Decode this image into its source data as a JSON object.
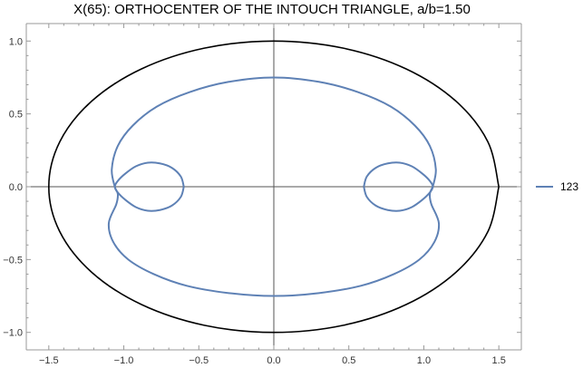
{
  "chart_data": {
    "type": "line",
    "title": "X(65): ORTHOCENTER OF THE INTOUCH TRIANGLE, a/b=1.50",
    "xlabel": "",
    "ylabel": "",
    "xlim": [
      -1.65,
      1.65
    ],
    "ylim": [
      -1.12,
      1.12
    ],
    "x_ticks": [
      -1.5,
      -1.0,
      -0.5,
      0.0,
      0.5,
      1.0,
      1.5
    ],
    "y_ticks": [
      -1.0,
      -0.5,
      0.0,
      0.5,
      1.0
    ],
    "x_tick_labels": [
      "−1.5",
      "−1.0",
      "−0.5",
      "0.0",
      "0.5",
      "1.0",
      "1.5"
    ],
    "y_tick_labels": [
      "−1.0",
      "−0.5",
      "0.0",
      "0.5",
      "1.0"
    ],
    "grid": false,
    "legend_position": "right",
    "colors": {
      "ellipse": "#000000",
      "series": "#5e81b5"
    },
    "series": [
      {
        "name": "",
        "kind": "reference-ellipse",
        "color": "#000000",
        "x": [
          1.5,
          1.4266,
          1.2135,
          0.8817,
          0.4635,
          0.0,
          -0.4635,
          -0.8817,
          -1.2135,
          -1.4266,
          -1.5,
          -1.4266,
          -1.2135,
          -0.8817,
          -0.4635,
          0.0,
          0.4635,
          0.8817,
          1.2135,
          1.4266,
          1.5
        ],
        "y": [
          0.0,
          0.309,
          0.5878,
          0.809,
          0.9511,
          1.0,
          0.9511,
          0.809,
          0.5878,
          0.309,
          0.0,
          -0.309,
          -0.5878,
          -0.809,
          -0.9511,
          -1.0,
          -0.9511,
          -0.809,
          -0.5878,
          -0.309,
          0.0
        ]
      },
      {
        "name": "123",
        "kind": "locus-outer",
        "color": "#5e81b5",
        "x": [
          1.06,
          1.08,
          1.04,
          0.94,
          0.78,
          0.56,
          0.3,
          0.0,
          -0.3,
          -0.56,
          -0.78,
          -0.94,
          -1.04,
          -1.08,
          -1.06,
          -1.04,
          -1.05,
          -1.1,
          -1.07,
          -0.97,
          -0.8,
          -0.58,
          -0.3,
          0.0,
          0.3,
          0.58,
          0.8,
          0.97,
          1.07,
          1.1,
          1.05,
          1.04,
          1.06
        ],
        "y": [
          0.0,
          0.12,
          0.28,
          0.42,
          0.55,
          0.65,
          0.72,
          0.75,
          0.72,
          0.65,
          0.55,
          0.42,
          0.28,
          0.12,
          0.0,
          -0.05,
          -0.12,
          -0.25,
          -0.38,
          -0.5,
          -0.6,
          -0.68,
          -0.73,
          -0.75,
          -0.73,
          -0.68,
          -0.6,
          -0.5,
          -0.38,
          -0.25,
          -0.12,
          -0.05,
          0.0
        ]
      },
      {
        "name": "123",
        "kind": "locus-right-loop",
        "color": "#5e81b5",
        "x": [
          0.6,
          0.62,
          0.68,
          0.76,
          0.84,
          0.92,
          0.99,
          1.04,
          1.06,
          1.04,
          0.99,
          0.92,
          0.84,
          0.76,
          0.68,
          0.62,
          0.6
        ],
        "y": [
          0.0,
          0.07,
          0.13,
          0.16,
          0.165,
          0.14,
          0.09,
          0.04,
          0.0,
          -0.04,
          -0.09,
          -0.14,
          -0.165,
          -0.16,
          -0.13,
          -0.07,
          0.0
        ]
      },
      {
        "name": "123",
        "kind": "locus-left-loop",
        "color": "#5e81b5",
        "x": [
          -0.6,
          -0.62,
          -0.68,
          -0.76,
          -0.84,
          -0.92,
          -0.99,
          -1.04,
          -1.06,
          -1.04,
          -0.99,
          -0.92,
          -0.84,
          -0.76,
          -0.68,
          -0.62,
          -0.6
        ],
        "y": [
          0.0,
          0.07,
          0.13,
          0.16,
          0.165,
          0.14,
          0.09,
          0.04,
          0.0,
          -0.04,
          -0.09,
          -0.14,
          -0.165,
          -0.16,
          -0.13,
          -0.07,
          0.0
        ]
      }
    ],
    "legend": [
      {
        "label": "123",
        "color": "#5e81b5"
      }
    ]
  }
}
